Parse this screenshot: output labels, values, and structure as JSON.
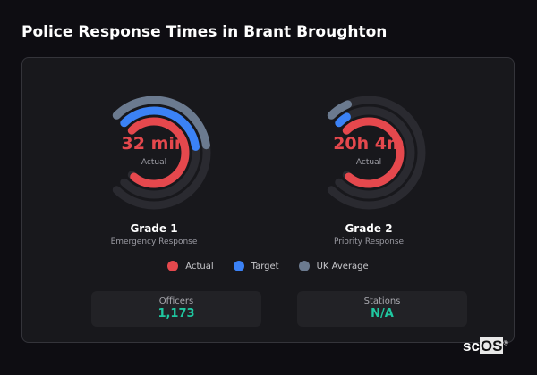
{
  "title": "Police Response Times in Brant Broughton",
  "colors": {
    "actual": "#e5484d",
    "target": "#3b82f6",
    "uk_average": "#6b7a8f",
    "track": "#2a2a30",
    "stat_value": "#1fc7a0"
  },
  "chart_data": [
    {
      "type": "radial-bar",
      "title": "Grade 1",
      "subtitle": "Emergency Response",
      "center_value": "32 min",
      "center_label": "Actual",
      "series": [
        {
          "name": "UK Average",
          "fill_fraction": 0.47
        },
        {
          "name": "Target",
          "fill_fraction": 0.47
        },
        {
          "name": "Actual",
          "fill_fraction": 0.98
        }
      ]
    },
    {
      "type": "radial-bar",
      "title": "Grade 2",
      "subtitle": "Priority Response",
      "center_value": "20h 4m",
      "center_label": "Actual",
      "series": [
        {
          "name": "UK Average",
          "fill_fraction": 0.08
        },
        {
          "name": "Target",
          "fill_fraction": 0.05
        },
        {
          "name": "Actual",
          "fill_fraction": 0.98
        }
      ]
    }
  ],
  "legend": [
    {
      "label": "Actual",
      "color": "#e5484d"
    },
    {
      "label": "Target",
      "color": "#3b82f6"
    },
    {
      "label": "UK Average",
      "color": "#6b7a8f"
    }
  ],
  "stats": [
    {
      "label": "Officers",
      "value": "1,173"
    },
    {
      "label": "Stations",
      "value": "N/A"
    }
  ],
  "logo": {
    "text": "scOS"
  }
}
